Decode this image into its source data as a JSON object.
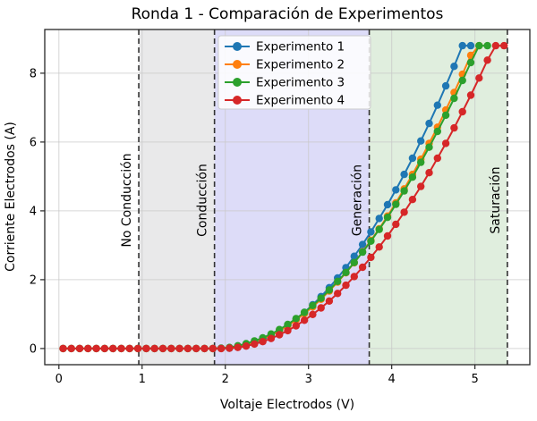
{
  "figure": {
    "title": "Ronda 1 - Comparación de Experimentos",
    "xlabel": "Voltaje Electrodos (V)",
    "ylabel": "Corriente Electrodos (A)"
  },
  "chart_data": {
    "type": "line",
    "title": "Ronda 1 - Comparación de Experimentos",
    "xlabel": "Voltaje Electrodos (V)",
    "ylabel": "Corriente Electrodos (A)",
    "xlim": [
      -0.17,
      5.66
    ],
    "ylim": [
      -0.47,
      9.27
    ],
    "x_ticks": [
      0,
      1,
      2,
      3,
      4,
      5
    ],
    "y_ticks": [
      0,
      2,
      4,
      6,
      8
    ],
    "grid": true,
    "legend_position": "upper center-left inside plot",
    "grid_color": "#c8c8c8",
    "spine_color": "#262626",
    "boundary_line_color": "#333333",
    "bands": [
      {
        "x0": 0.96,
        "x1": 1.87,
        "color": "#e9e9ea"
      },
      {
        "x0": 1.87,
        "x1": 3.73,
        "color": "#dddcf8"
      },
      {
        "x0": 3.73,
        "x1": 5.39,
        "color": "#e0eede"
      }
    ],
    "boundaries": [
      {
        "label": "No Conducción",
        "x": 0.96
      },
      {
        "label": "Conducción",
        "x": 1.87
      },
      {
        "label": "Generación",
        "x": 3.73
      },
      {
        "label": "Saturación",
        "x": 5.39
      }
    ],
    "series": [
      {
        "name": "Experimento 1",
        "color": "#1f77b4",
        "x": [
          0.05,
          0.15,
          0.25,
          0.35,
          0.45,
          0.55,
          0.65,
          0.75,
          0.85,
          0.95,
          1.05,
          1.15,
          1.25,
          1.35,
          1.45,
          1.55,
          1.65,
          1.75,
          1.85,
          1.95,
          2.05,
          2.15,
          2.25,
          2.35,
          2.45,
          2.55,
          2.65,
          2.75,
          2.85,
          2.95,
          3.05,
          3.15,
          3.25,
          3.35,
          3.45,
          3.55,
          3.65,
          3.75,
          3.85,
          3.95,
          4.05,
          4.15,
          4.25,
          4.35,
          4.45,
          4.55,
          4.65,
          4.75,
          4.85,
          4.95
        ],
        "y": [
          0,
          0,
          0,
          0,
          0,
          0,
          0,
          0,
          0,
          0,
          0,
          0,
          0,
          0,
          0,
          0,
          0,
          0,
          0,
          0,
          0.01,
          0.04,
          0.09,
          0.17,
          0.26,
          0.38,
          0.51,
          0.67,
          0.85,
          1.05,
          1.27,
          1.51,
          1.77,
          2.05,
          2.35,
          2.68,
          3.02,
          3.39,
          3.78,
          4.18,
          4.61,
          5.06,
          5.53,
          6.03,
          6.54,
          7.07,
          7.63,
          8.2,
          8.8,
          8.8
        ]
      },
      {
        "name": "Experimento 2",
        "color": "#ff7f0e",
        "x": [
          0.05,
          0.15,
          0.25,
          0.35,
          0.45,
          0.55,
          0.65,
          0.75,
          0.85,
          0.95,
          1.05,
          1.15,
          1.25,
          1.35,
          1.45,
          1.55,
          1.65,
          1.75,
          1.85,
          1.95,
          2.05,
          2.15,
          2.25,
          2.35,
          2.45,
          2.55,
          2.65,
          2.75,
          2.85,
          2.95,
          3.05,
          3.15,
          3.25,
          3.35,
          3.45,
          3.55,
          3.65,
          3.75,
          3.85,
          3.95,
          4.05,
          4.15,
          4.25,
          4.35,
          4.45,
          4.55,
          4.65,
          4.75,
          4.85,
          4.95,
          5.05
        ],
        "y": [
          0,
          0,
          0,
          0,
          0,
          0,
          0,
          0,
          0,
          0,
          0,
          0,
          0,
          0,
          0,
          0,
          0,
          0,
          0,
          0,
          0.02,
          0.06,
          0.11,
          0.19,
          0.28,
          0.39,
          0.52,
          0.66,
          0.83,
          1.01,
          1.21,
          1.43,
          1.67,
          1.93,
          2.2,
          2.49,
          2.81,
          3.14,
          3.48,
          3.85,
          4.23,
          4.64,
          5.06,
          5.5,
          5.96,
          6.43,
          6.93,
          7.44,
          7.97,
          8.52,
          8.8
        ]
      },
      {
        "name": "Experimento 3",
        "color": "#2ca02c",
        "x": [
          0.05,
          0.15,
          0.25,
          0.35,
          0.45,
          0.55,
          0.65,
          0.75,
          0.85,
          0.95,
          1.05,
          1.15,
          1.25,
          1.35,
          1.45,
          1.55,
          1.65,
          1.75,
          1.85,
          1.95,
          2.05,
          2.15,
          2.25,
          2.35,
          2.45,
          2.55,
          2.65,
          2.75,
          2.85,
          2.95,
          3.05,
          3.15,
          3.25,
          3.35,
          3.45,
          3.55,
          3.65,
          3.75,
          3.85,
          3.95,
          4.05,
          4.15,
          4.25,
          4.35,
          4.45,
          4.55,
          4.65,
          4.75,
          4.85,
          4.95,
          5.05,
          5.15
        ],
        "y": [
          0,
          0,
          0,
          0,
          0,
          0,
          0,
          0,
          0,
          0,
          0,
          0,
          0,
          0,
          0,
          0,
          0,
          0,
          0,
          0.01,
          0.03,
          0.08,
          0.14,
          0.22,
          0.31,
          0.42,
          0.55,
          0.7,
          0.87,
          1.05,
          1.25,
          1.46,
          1.7,
          1.95,
          2.21,
          2.5,
          2.8,
          3.12,
          3.46,
          3.81,
          4.19,
          4.58,
          4.98,
          5.41,
          5.85,
          6.31,
          6.78,
          7.27,
          7.79,
          8.31,
          8.8,
          8.8
        ]
      },
      {
        "name": "Experimento 4",
        "color": "#d62728",
        "x": [
          0.05,
          0.15,
          0.25,
          0.35,
          0.45,
          0.55,
          0.65,
          0.75,
          0.85,
          0.95,
          1.05,
          1.15,
          1.25,
          1.35,
          1.45,
          1.55,
          1.65,
          1.75,
          1.85,
          1.95,
          2.05,
          2.15,
          2.25,
          2.35,
          2.45,
          2.55,
          2.65,
          2.75,
          2.85,
          2.95,
          3.05,
          3.15,
          3.25,
          3.35,
          3.45,
          3.55,
          3.65,
          3.75,
          3.85,
          3.95,
          4.05,
          4.15,
          4.25,
          4.35,
          4.45,
          4.55,
          4.65,
          4.75,
          4.85,
          4.95,
          5.05,
          5.15,
          5.25,
          5.35
        ],
        "y": [
          0,
          0,
          0,
          0,
          0,
          0,
          0,
          0,
          0,
          0,
          0,
          0,
          0,
          0,
          0,
          0,
          0,
          0,
          0,
          0,
          0.01,
          0.03,
          0.07,
          0.13,
          0.2,
          0.29,
          0.4,
          0.52,
          0.66,
          0.82,
          0.99,
          1.18,
          1.38,
          1.6,
          1.84,
          2.09,
          2.36,
          2.65,
          2.95,
          3.27,
          3.61,
          3.96,
          4.33,
          4.71,
          5.11,
          5.53,
          5.96,
          6.41,
          6.88,
          7.36,
          7.86,
          8.38,
          8.8,
          8.8
        ]
      }
    ]
  }
}
